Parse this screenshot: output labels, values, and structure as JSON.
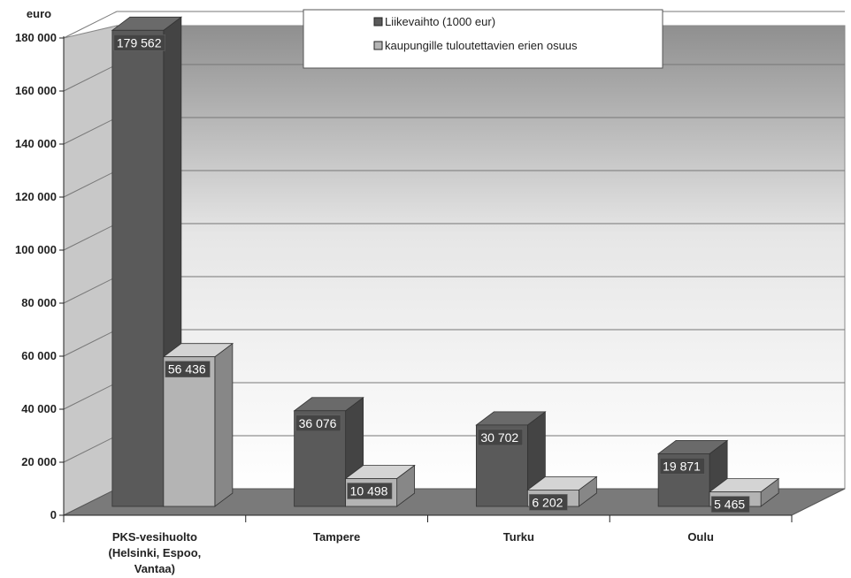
{
  "chart_data": {
    "type": "bar",
    "unit_label": "euro",
    "categories": [
      "PKS-vesihuolto\n(Helsinki, Espoo,\nVantaa)",
      "Tampere",
      "Turku",
      "Oulu"
    ],
    "series": [
      {
        "name": "Liikevaihto (1000 eur)",
        "values": [
          179562,
          36076,
          30702,
          19871
        ],
        "labels": [
          "179 562",
          "36 076",
          "30 702",
          "19 871"
        ],
        "color": "#5a5a5a"
      },
      {
        "name": "kaupungille tuloutettavien erien osuus",
        "values": [
          56436,
          10498,
          6202,
          5465
        ],
        "labels": [
          "56 436",
          "10 498",
          "6 202",
          "5 465"
        ],
        "color": "#b4b4b4"
      }
    ],
    "ylim": [
      0,
      180000
    ],
    "yticks": [
      0,
      20000,
      40000,
      60000,
      80000,
      100000,
      120000,
      140000,
      160000,
      180000
    ],
    "ytick_labels": [
      "0",
      "20 000",
      "40 000",
      "60 000",
      "80 000",
      "100 000",
      "120 000",
      "140 000",
      "160 000",
      "180 000"
    ],
    "grid": true,
    "legend_position": "top-center",
    "style": "3d"
  }
}
